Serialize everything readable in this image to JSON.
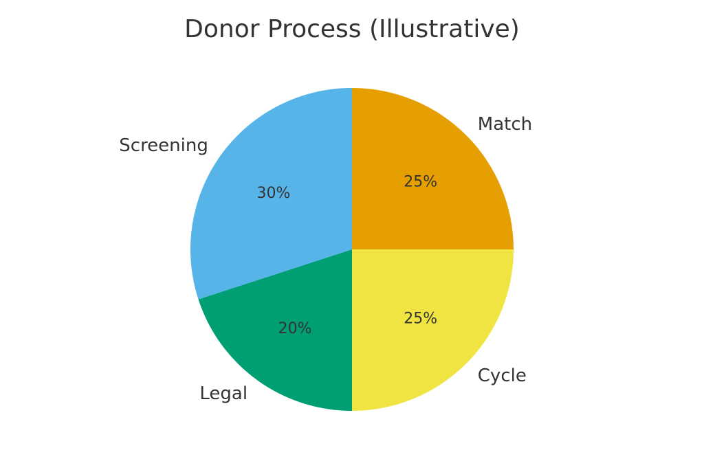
{
  "chart_data": {
    "type": "pie",
    "title": "Donor Process (Illustrative)",
    "start_angle_deg": 90,
    "direction": "clockwise",
    "slices": [
      {
        "label": "Match",
        "value": 25,
        "pct_label": "25%",
        "color": "#E69F00"
      },
      {
        "label": "Cycle",
        "value": 25,
        "pct_label": "25%",
        "color": "#F0E442"
      },
      {
        "label": "Legal",
        "value": 20,
        "pct_label": "20%",
        "color": "#009E73"
      },
      {
        "label": "Screening",
        "value": 30,
        "pct_label": "30%",
        "color": "#56B4E9"
      }
    ]
  }
}
